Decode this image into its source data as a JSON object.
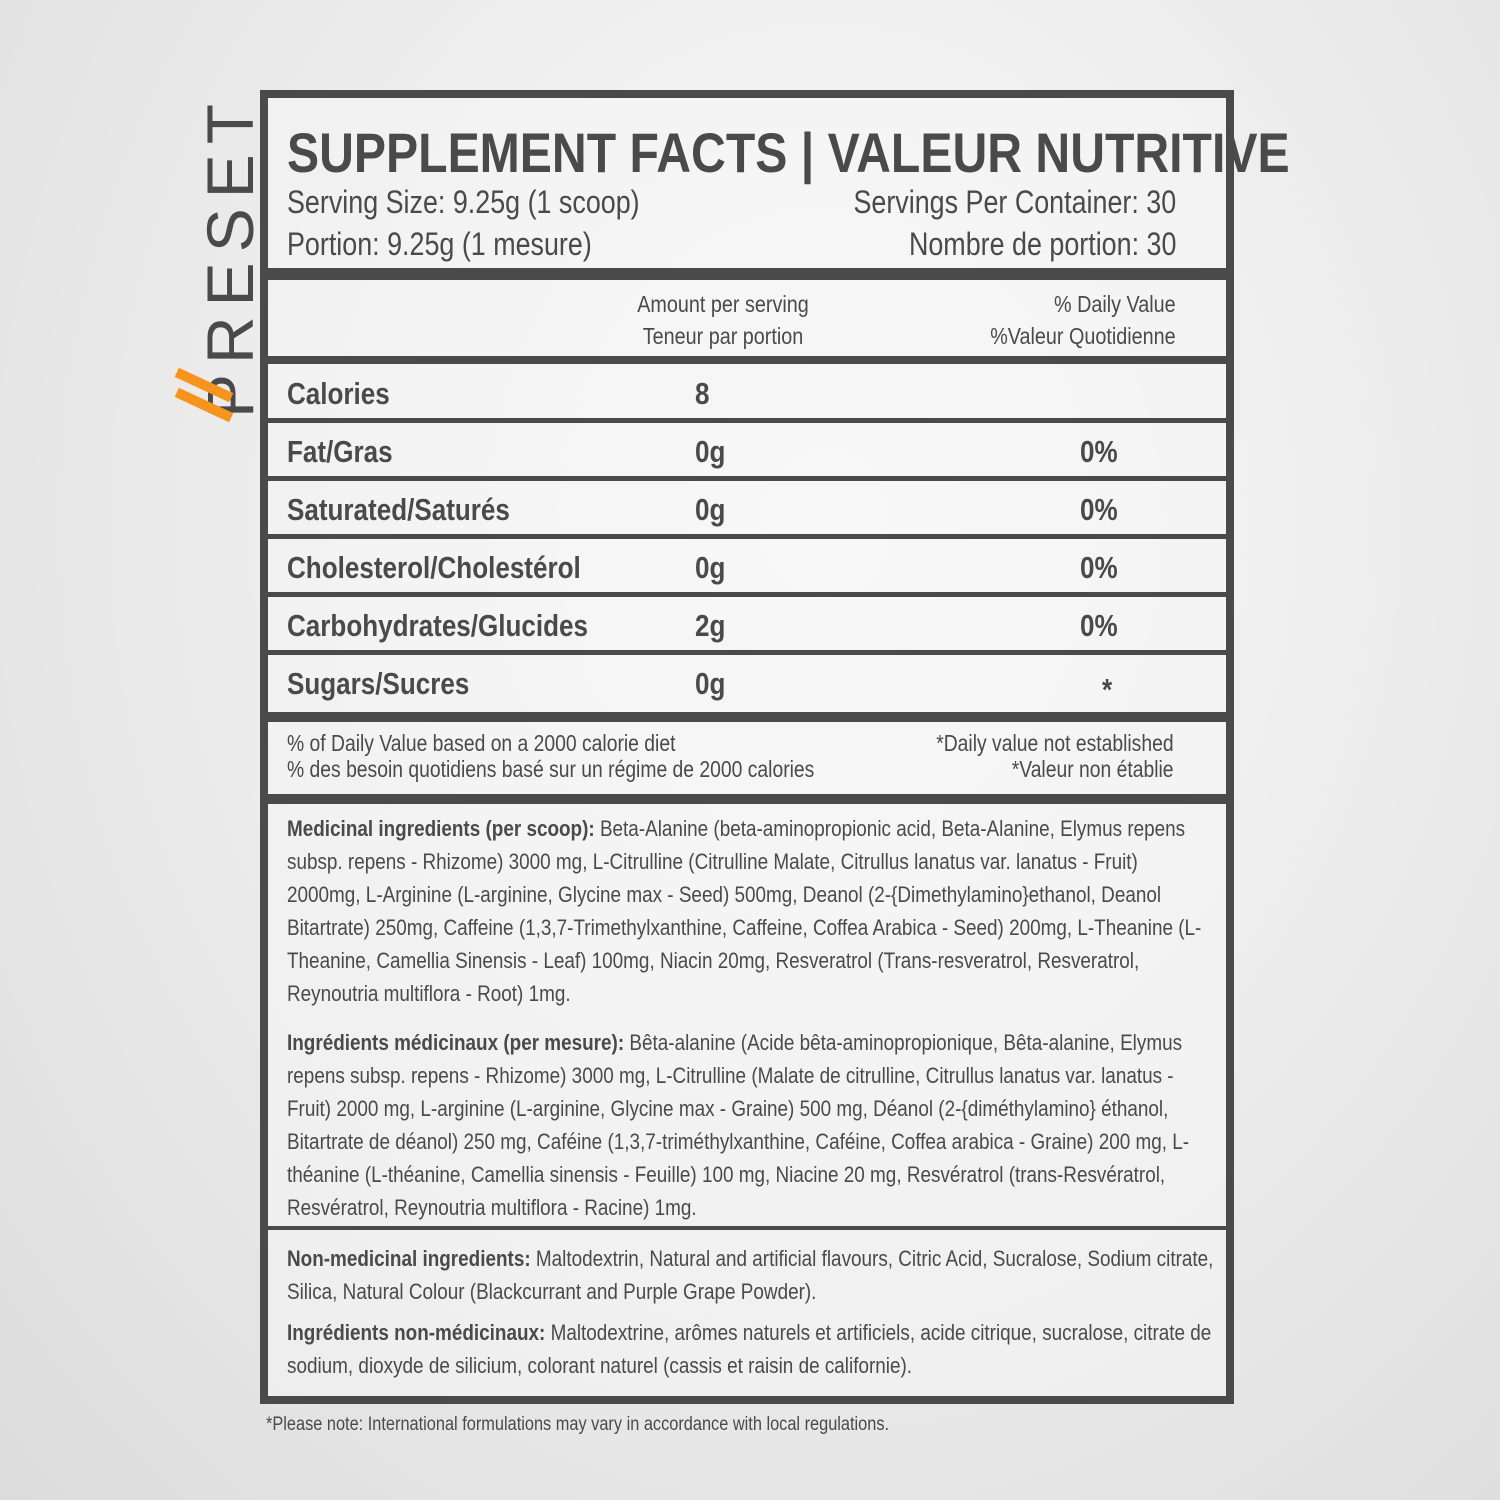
{
  "brand": {
    "name": "PRESET",
    "accent": "#f7941d",
    "ink": "#4a4a4a"
  },
  "header": {
    "title": "SUPPLEMENT FACTS | VALEUR NUTRITIVE",
    "serving_size": "Serving Size: 9.25g (1 scoop)",
    "servings_per_container": "Servings Per Container: 30",
    "portion": "Portion: 9.25g (1 mesure)",
    "nombre_portion": "Nombre de portion: 30"
  },
  "columns": {
    "amount_en": "Amount per serving",
    "amount_fr": "Teneur par portion",
    "dv_en": "% Daily Value",
    "dv_fr": "%Valeur Quotidienne"
  },
  "rows": [
    {
      "name": "Calories",
      "amount": "8",
      "dv": ""
    },
    {
      "name": "Fat/Gras",
      "amount": "0g",
      "dv": "0%"
    },
    {
      "name": "Saturated/Saturés",
      "amount": "0g",
      "dv": "0%"
    },
    {
      "name": "Cholesterol/Cholestérol",
      "amount": "0g",
      "dv": "0%"
    },
    {
      "name": "Carbohydrates/Glucides",
      "amount": "2g",
      "dv": "0%"
    },
    {
      "name": "Sugars/Sucres",
      "amount": "0g",
      "dv": "*"
    }
  ],
  "footnote": {
    "left_en": "% of Daily Value based on a 2000 calorie diet",
    "left_fr": "% des besoin quotidiens basé sur un régime de 2000 calories",
    "right_en": "*Daily value not established",
    "right_fr": "*Valeur non établie"
  },
  "ingredients": {
    "med_en_label": "Medicinal ingredients (per scoop):",
    "med_en": " Beta-Alanine (beta-aminopropionic acid, Beta-Alanine, Elymus repens subsp. repens - Rhizome) 3000 mg, L-Citrulline (Citrulline Malate, Citrullus lanatus var. lanatus - Fruit) 2000mg, L-Arginine (L-arginine, Glycine max - Seed) 500mg, Deanol (2-{Dimethylamino}ethanol, Deanol Bitartrate) 250mg, Caffeine (1,3,7-Trimethylxanthine, Caffeine, Coffea Arabica - Seed) 200mg, L-Theanine (L-Theanine, Camellia Sinensis - Leaf) 100mg, Niacin 20mg, Resveratrol (Trans-resveratrol, Resveratrol, Reynoutria multiflora - Root) 1mg.",
    "med_fr_label": "Ingrédients médicinaux (per mesure):",
    "med_fr": " Bêta-alanine (Acide bêta-aminopropionique, Bêta-alanine, Elymus repens subsp. repens - Rhizome) 3000 mg, L-Citrulline (Malate de citrulline, Citrullus lanatus var. lanatus - Fruit) 2000 mg, L-arginine (L-arginine, Glycine max - Graine) 500 mg, Déanol (2-{diméthylamino} éthanol, Bitartrate de déanol) 250 mg, Caféine (1,3,7-triméthylxanthine, Caféine, Coffea arabica - Graine) 200 mg, L-théanine (L-théanine, Camellia sinensis - Feuille) 100 mg, Niacine 20 mg, Resvératrol (trans-Resvératrol, Resvératrol, Reynoutria multiflora - Racine) 1mg.",
    "non_en_label": "Non-medicinal ingredients:",
    "non_en": " Maltodextrin, Natural and artificial flavours, Citric Acid, Sucralose, Sodium citrate, Silica, Natural Colour  (Blackcurrant and Purple Grape Powder).",
    "non_fr_label": "Ingrédients non-médicinaux:",
    "non_fr": " Maltodextrine, arômes naturels et artificiels,  acide citrique, sucralose, citrate de sodium, dioxyde de silicium, colorant naturel (cassis et raisin de californie)."
  },
  "note": "*Please note: International formulations may vary in accordance with local regulations."
}
